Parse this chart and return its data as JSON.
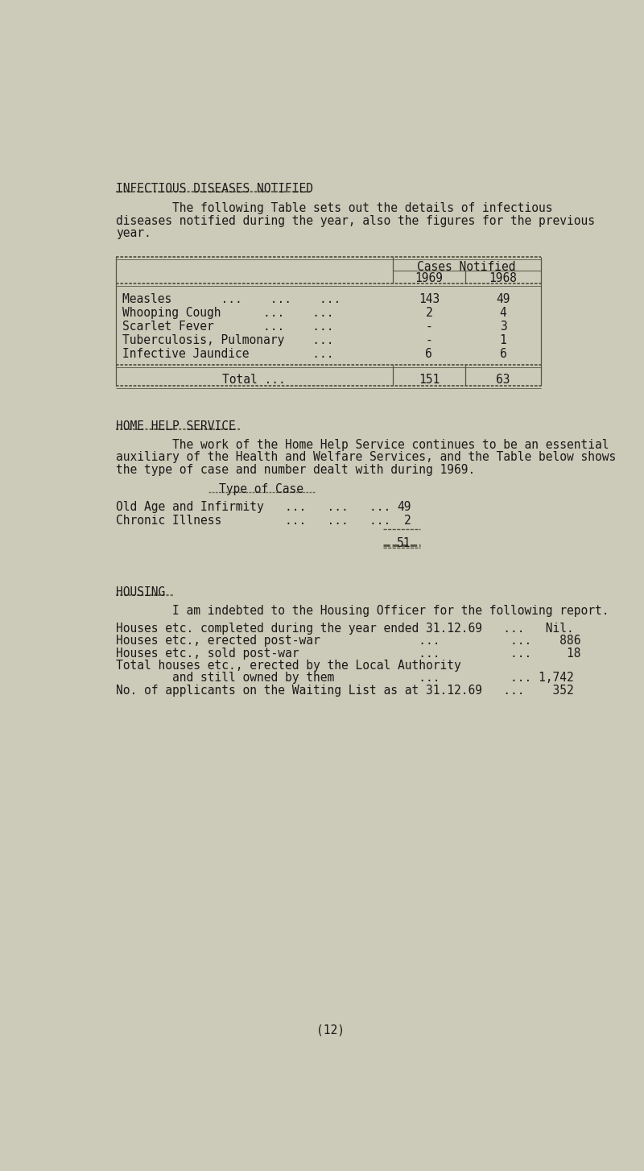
{
  "bg_color": "#cccab8",
  "text_color": "#1a1a1a",
  "font_family": "DejaVu Sans Mono",
  "section1_title": "INFECTIOUS DISEASES NOTIFIED",
  "section1_body_lines": [
    "        The following Table sets out the details of infectious",
    "diseases notified during the year, also the figures for the previous",
    "year."
  ],
  "table1_header_span": "Cases Notified",
  "table1_col1": "1969",
  "table1_col2": "1968",
  "table1_rows": [
    [
      "Measles       ...    ...    ...",
      "143",
      "49"
    ],
    [
      "Whooping Cough      ...    ...",
      "2",
      "4"
    ],
    [
      "Scarlet Fever       ...    ...",
      "-",
      "3"
    ],
    [
      "Tuberculosis, Pulmonary    ...",
      "-",
      "1"
    ],
    [
      "Infective Jaundice         ...",
      "6",
      "6"
    ]
  ],
  "table1_total_label": "Total ...",
  "table1_total_1969": "151",
  "table1_total_1968": "63",
  "section2_title": "HOME HELP SERVICE",
  "section2_body_lines": [
    "        The work of the Home Help Service continues to be an essential",
    "auxiliary of the Health and Welfare Services, and the Table below shows",
    "the type of case and number dealt with during 1969."
  ],
  "section2_subtitle": "Type of Case",
  "section2_rows": [
    [
      "Old Age and Infirmity   ...   ...   ...",
      "49"
    ],
    [
      "Chronic Illness         ...   ...   ...",
      "2"
    ]
  ],
  "section2_total": "51",
  "section3_title": "HOUSING",
  "section3_intro": "        I am indebted to the Housing Officer for the following report.",
  "section3_rows": [
    [
      "Houses etc. completed during the year ended 31.12.69   ...   Nil."
    ],
    [
      "Houses etc., erected post-war              ...          ...    886"
    ],
    [
      "Houses etc., sold post-war                 ...          ...     18"
    ],
    [
      "Total houses etc., erected by the Local Authority"
    ],
    [
      "        and still owned by them            ...          ... 1,742"
    ],
    [
      "No. of applicants on the Waiting List as at 31.12.69   ...    352"
    ]
  ],
  "page_number": "(12)"
}
